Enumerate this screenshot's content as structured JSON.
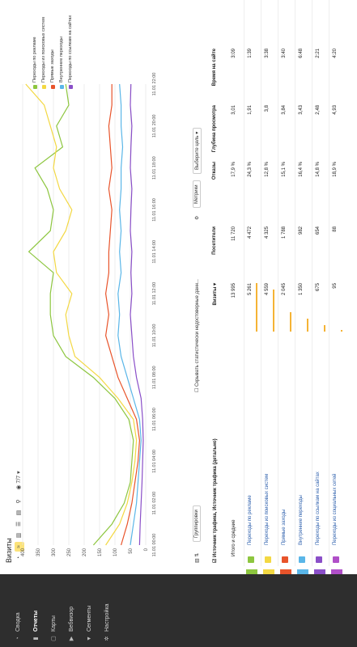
{
  "sidebar": {
    "items": [
      {
        "label": "Сводка",
        "icon": "clock-icon",
        "glyph": "◔"
      },
      {
        "label": "Отчеты",
        "icon": "bar-chart-icon",
        "glyph": "▮"
      },
      {
        "label": "Карты",
        "icon": "map-icon",
        "glyph": "▢"
      },
      {
        "label": "Вебвизор",
        "icon": "play-icon",
        "glyph": "▶"
      },
      {
        "label": "Сегменты",
        "icon": "filter-icon",
        "glyph": "▼"
      },
      {
        "label": "Настройка",
        "icon": "gear-icon",
        "glyph": "✲"
      }
    ],
    "active": "Отчеты"
  },
  "header": {
    "title": "Визиты",
    "tools": [
      "◔",
      "≈",
      "▥",
      "☰",
      "▤",
      "⚲",
      "◉ 7/7 ▾"
    ]
  },
  "chart_data": {
    "type": "line",
    "x": [
      "11.01 00:00",
      "11.01 01:00",
      "11.01 02:00",
      "11.01 03:00",
      "11.01 04:00",
      "11.01 05:00",
      "11.01 06:00",
      "11.01 07:00",
      "11.01 08:00",
      "11.01 09:00",
      "11.01 10:00",
      "11.01 11:00",
      "11.01 12:00",
      "11.01 13:00",
      "11.01 14:00",
      "11.01 15:00",
      "11.01 16:00",
      "11.01 17:00",
      "11.01 18:00",
      "11.01 19:00",
      "11.01 20:00",
      "11.01 21:00",
      "11.01 22:00"
    ],
    "xticks": [
      "11.01 00:00",
      "11.01 02:00",
      "11.01 04:00",
      "11.01 06:00",
      "11.01 08:00",
      "11.01 10:00",
      "11.01 12:00",
      "11.01 14:00",
      "11.01 16:00",
      "11.01 18:00",
      "11.01 20:00",
      "11.01 22:00"
    ],
    "ylim": [
      0,
      400
    ],
    "yticks": [
      0,
      50,
      100,
      150,
      200,
      250,
      300,
      350,
      400
    ],
    "series": [
      {
        "name": "Переходы по рекламе",
        "color": "#8dc63f",
        "values": [
          170,
          110,
          70,
          50,
          45,
          40,
          55,
          100,
          170,
          260,
          300,
          310,
          310,
          300,
          380,
          310,
          300,
          320,
          360,
          270,
          290,
          250,
          260
        ]
      },
      {
        "name": "Переходы из поисковых систем",
        "color": "#f3d843",
        "values": [
          130,
          85,
          60,
          45,
          35,
          30,
          40,
          90,
          150,
          230,
          250,
          260,
          240,
          290,
          300,
          260,
          240,
          280,
          300,
          290,
          310,
          330,
          390
        ]
      },
      {
        "name": "Прямые заходы",
        "color": "#e8542b",
        "values": [
          80,
          60,
          45,
          35,
          25,
          20,
          30,
          60,
          90,
          110,
          130,
          120,
          130,
          120,
          120,
          115,
          110,
          120,
          110,
          115,
          120,
          110,
          110
        ]
      },
      {
        "name": "Внутренние переходы",
        "color": "#5ab6e8",
        "values": [
          50,
          40,
          30,
          25,
          20,
          15,
          20,
          40,
          60,
          80,
          90,
          85,
          90,
          80,
          85,
          80,
          85,
          80,
          80,
          75,
          80,
          80,
          85
        ]
      },
      {
        "name": "Переходы по ссылкам на сайтах",
        "color": "#8a4fc8",
        "values": [
          20,
          18,
          15,
          12,
          10,
          8,
          10,
          15,
          30,
          40,
          45,
          50,
          45,
          48,
          45,
          50,
          48,
          45,
          50,
          48,
          45,
          50,
          48
        ]
      }
    ]
  },
  "controls": {
    "groupings": "Группировки",
    "hide_unreliable": "Скрывать статистически недостоверные данн...",
    "metrics": "Метрики",
    "choose_goal": "Выберите цель ▾"
  },
  "table": {
    "header_dim": "Источник трафика, Источник трафика (детально)",
    "columns": [
      {
        "label": "Визиты ▾"
      },
      {
        "label": "Посетители"
      },
      {
        "label": "Отказы"
      },
      {
        "label": "Глубина просмотра"
      },
      {
        "label": "Время на сайте"
      }
    ],
    "total_label": "Итого и средние",
    "totals": [
      "13 995",
      "11 720",
      "17,9 %",
      "3,01",
      "3:09"
    ],
    "rows": [
      {
        "label": "Переходы по рекламе",
        "color": "#8dc63f",
        "values": [
          "5 261",
          "4 472",
          "24,3 %",
          "1,91",
          "1:39"
        ],
        "bar": 0.38
      },
      {
        "label": "Переходы из поисковых систем",
        "color": "#f3d843",
        "values": [
          "4 559",
          "4 325",
          "12,8 %",
          "3,8",
          "3:38"
        ],
        "bar": 0.33
      },
      {
        "label": "Прямые заходы",
        "color": "#e8542b",
        "values": [
          "2 045",
          "1 788",
          "15,1 %",
          "3,84",
          "3:40"
        ],
        "bar": 0.15
      },
      {
        "label": "Внутренние переходы",
        "color": "#5ab6e8",
        "values": [
          "1 350",
          "982",
          "16,4 %",
          "3,43",
          "6:48"
        ],
        "bar": 0.1
      },
      {
        "label": "Переходы по ссылкам на сайтах",
        "color": "#8a4fc8",
        "values": [
          "675",
          "654",
          "14,8 %",
          "2,48",
          "2:21"
        ],
        "bar": 0.05
      },
      {
        "label": "Переходы из социальных сетей",
        "color": "#b04fc8",
        "values": [
          "95",
          "88",
          "18,9 %",
          "4,93",
          "4:20"
        ],
        "bar": 0.01
      }
    ]
  }
}
